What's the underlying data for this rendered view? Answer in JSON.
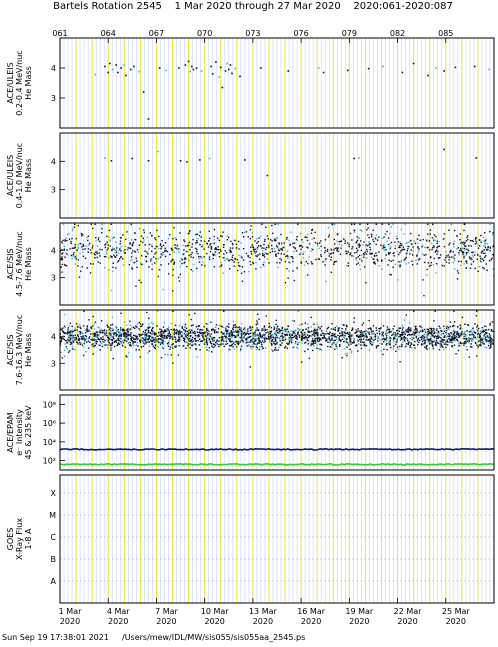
{
  "header": {
    "title": "Bartels Rotation 2545    1 Mar 2020 through 27 Mar 2020    2020:061-2020:087"
  },
  "footer": {
    "timestamp": "Sun Sep 19 17:38:01 2021",
    "path": "/Users/mew/IDL/MW/sis055/sis055aa_2545.ps"
  },
  "colors": {
    "frame": "#000000",
    "day_grid": "#e8e830",
    "hour_grid": "#c8d4ff",
    "points_dark": "#101028",
    "points_light": "#40b0c8",
    "electron_high": "#0a1a8a",
    "electron_low": "#30d030",
    "goes": "#a0a0ff"
  },
  "chart_data": {
    "type": "scatter",
    "title": "Bartels Rotation 2545    1 Mar 2020 through 27 Mar 2020    2020:061-2020:087",
    "xlim": [
      61,
      88
    ],
    "doy_ticks": [
      "061",
      "064",
      "067",
      "070",
      "073",
      "076",
      "079",
      "082",
      "085"
    ],
    "date_ticks": [
      {
        "date": "1 Mar",
        "year": "2020",
        "doy": 61
      },
      {
        "date": "4 Mar",
        "year": "2020",
        "doy": 64
      },
      {
        "date": "7 Mar",
        "year": "2020",
        "doy": 67
      },
      {
        "date": "10 Mar",
        "year": "2020",
        "doy": 70
      },
      {
        "date": "13 Mar",
        "year": "2020",
        "doy": 73
      },
      {
        "date": "16 Mar",
        "year": "2020",
        "doy": 76
      },
      {
        "date": "19 Mar",
        "year": "2020",
        "doy": 79
      },
      {
        "date": "22 Mar",
        "year": "2020",
        "doy": 82
      },
      {
        "date": "25 Mar",
        "year": "2020",
        "doy": 85
      }
    ],
    "panels": [
      {
        "ylabel": [
          "ACE/ULEIS",
          "0.2-0.4 MeV/nuc",
          "He Mass"
        ],
        "ylim": [
          2,
          5
        ],
        "yticks": [
          "4",
          "3"
        ],
        "points": [
          [
            63.2,
            3.78
          ],
          [
            63.8,
            4.05
          ],
          [
            64.0,
            3.85
          ],
          [
            64.1,
            4.15
          ],
          [
            64.3,
            3.95
          ],
          [
            64.5,
            4.1
          ],
          [
            64.6,
            3.85
          ],
          [
            64.8,
            4.0
          ],
          [
            65.0,
            4.1
          ],
          [
            65.1,
            3.75
          ],
          [
            65.4,
            3.95
          ],
          [
            65.6,
            4.05
          ],
          [
            65.9,
            3.88
          ],
          [
            66.2,
            3.2
          ],
          [
            66.5,
            2.3
          ],
          [
            67.2,
            4.0
          ],
          [
            67.6,
            3.92
          ],
          [
            68.4,
            4.0
          ],
          [
            68.8,
            4.1
          ],
          [
            69.0,
            4.22
          ],
          [
            69.1,
            3.88
          ],
          [
            69.2,
            4.05
          ],
          [
            69.3,
            3.95
          ],
          [
            69.5,
            4.0
          ],
          [
            69.8,
            3.9
          ],
          [
            70.4,
            4.05
          ],
          [
            70.5,
            3.8
          ],
          [
            70.7,
            4.2
          ],
          [
            70.9,
            3.7
          ],
          [
            71.0,
            4.02
          ],
          [
            71.1,
            3.35
          ],
          [
            71.3,
            3.9
          ],
          [
            71.4,
            4.15
          ],
          [
            71.5,
            3.95
          ],
          [
            71.6,
            4.1
          ],
          [
            71.7,
            3.82
          ],
          [
            71.9,
            3.98
          ],
          [
            72.2,
            3.72
          ],
          [
            73.5,
            4.0
          ],
          [
            75.2,
            3.9
          ],
          [
            77.1,
            4.0
          ],
          [
            77.4,
            3.85
          ],
          [
            78.9,
            3.92
          ],
          [
            80.2,
            3.98
          ],
          [
            81.1,
            4.05
          ],
          [
            82.3,
            3.85
          ],
          [
            83.0,
            4.15
          ],
          [
            83.9,
            3.75
          ],
          [
            84.4,
            4.0
          ],
          [
            84.9,
            3.9
          ],
          [
            85.6,
            4.02
          ],
          [
            86.8,
            4.05
          ],
          [
            87.7,
            3.95
          ]
        ]
      },
      {
        "ylabel": [
          "ACE/ULEIS",
          "0.4-1.0 MeV/nuc",
          "He Mass"
        ],
        "ylim": [
          2,
          5
        ],
        "yticks": [
          "4",
          "3"
        ],
        "points": [
          [
            63.8,
            4.12
          ],
          [
            64.2,
            4.02
          ],
          [
            65.5,
            4.1
          ],
          [
            66.5,
            4.02
          ],
          [
            67.1,
            4.35
          ],
          [
            68.5,
            4.02
          ],
          [
            68.9,
            3.98
          ],
          [
            69.7,
            4.05
          ],
          [
            70.3,
            4.1
          ],
          [
            72.5,
            4.05
          ],
          [
            73.9,
            3.5
          ],
          [
            79.3,
            4.1
          ],
          [
            79.6,
            4.12
          ],
          [
            84.9,
            4.42
          ],
          [
            86.9,
            4.12
          ]
        ]
      },
      {
        "ylabel": [
          "ACE/SIS",
          "4.5-7.6 MeV/nuc",
          "He Mass"
        ],
        "ylim": [
          2,
          5
        ],
        "yticks": [
          "4",
          "3"
        ],
        "density": 1300,
        "spread": 0.38
      },
      {
        "ylabel": [
          "ACE/SIS",
          "7.6-16.3 MeV/nuc",
          "He Mass"
        ],
        "ylim": [
          2,
          5
        ],
        "yticks": [
          "4",
          "3"
        ],
        "density": 2600,
        "spread": 0.22
      },
      {
        "ylabel": [
          "ACE/EPAM",
          "e⁻ Intensity",
          "45 & 235 keV"
        ],
        "yticks": [
          "10⁸",
          "10⁶",
          "10⁴",
          "10²"
        ],
        "series": [
          {
            "name": "45 keV",
            "log10_value": 3.2
          },
          {
            "name": "235 keV",
            "log10_value": 1.6
          }
        ]
      },
      {
        "ylabel": [
          "GOES",
          "X-Ray Flux",
          "1-8 A"
        ],
        "ylevels": [
          "X",
          "M",
          "C",
          "B",
          "A"
        ]
      }
    ]
  }
}
